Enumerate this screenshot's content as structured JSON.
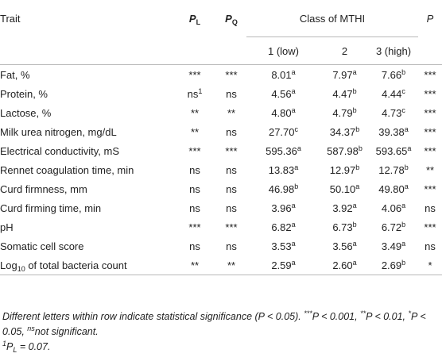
{
  "table": {
    "headers": {
      "trait": "Trait",
      "pl_letter": "P",
      "pl_sub": "L",
      "pq_letter": "P",
      "pq_sub": "Q",
      "class_group": "Class of MTHI",
      "class_1": "1 (low)",
      "class_2": "2",
      "class_3": "3 (high)",
      "p": "P"
    },
    "rows": [
      {
        "trait": "Fat, %",
        "trait_sub": "",
        "trait_tail": "",
        "pl": "***",
        "pl_sup": "",
        "pq": "***",
        "c1": "8.01",
        "c1s": "a",
        "c2": "7.97",
        "c2s": "a",
        "c3": "7.66",
        "c3s": "b",
        "p": "***"
      },
      {
        "trait": "Protein, %",
        "trait_sub": "",
        "trait_tail": "",
        "pl": "ns",
        "pl_sup": "1",
        "pq": "ns",
        "c1": "4.56",
        "c1s": "a",
        "c2": "4.47",
        "c2s": "b",
        "c3": "4.44",
        "c3s": "c",
        "p": "***"
      },
      {
        "trait": "Lactose, %",
        "trait_sub": "",
        "trait_tail": "",
        "pl": "**",
        "pl_sup": "",
        "pq": "**",
        "c1": "4.80",
        "c1s": "a",
        "c2": "4.79",
        "c2s": "b",
        "c3": "4.73",
        "c3s": "c",
        "p": "***"
      },
      {
        "trait": "Milk urea nitrogen, mg/dL",
        "trait_sub": "",
        "trait_tail": "",
        "pl": "**",
        "pl_sup": "",
        "pq": "ns",
        "c1": "27.70",
        "c1s": "c",
        "c2": "34.37",
        "c2s": "b",
        "c3": "39.38",
        "c3s": "a",
        "p": "***"
      },
      {
        "trait": "Electrical conductivity, mS",
        "trait_sub": "",
        "trait_tail": "",
        "pl": "***",
        "pl_sup": "",
        "pq": "***",
        "c1": "595.36",
        "c1s": "a",
        "c2": "587.98",
        "c2s": "b",
        "c3": "593.65",
        "c3s": "a",
        "p": "***"
      },
      {
        "trait": "Rennet coagulation time, min",
        "trait_sub": "",
        "trait_tail": "",
        "pl": "ns",
        "pl_sup": "",
        "pq": "ns",
        "c1": "13.83",
        "c1s": "a",
        "c2": "12.97",
        "c2s": "b",
        "c3": "12.78",
        "c3s": "b",
        "p": "**"
      },
      {
        "trait": "Curd firmness, mm",
        "trait_sub": "",
        "trait_tail": "",
        "pl": "ns",
        "pl_sup": "",
        "pq": "ns",
        "c1": "46.98",
        "c1s": "b",
        "c2": "50.10",
        "c2s": "a",
        "c3": "49.80",
        "c3s": "a",
        "p": "***"
      },
      {
        "trait": "Curd firming time, min",
        "trait_sub": "",
        "trait_tail": "",
        "pl": "ns",
        "pl_sup": "",
        "pq": "ns",
        "c1": "3.96",
        "c1s": "a",
        "c2": "3.92",
        "c2s": "a",
        "c3": "4.06",
        "c3s": "a",
        "p": "ns"
      },
      {
        "trait": "pH",
        "trait_sub": "",
        "trait_tail": "",
        "pl": "***",
        "pl_sup": "",
        "pq": "***",
        "c1": "6.82",
        "c1s": "a",
        "c2": "6.73",
        "c2s": "b",
        "c3": "6.72",
        "c3s": "b",
        "p": "***"
      },
      {
        "trait": "Somatic cell score",
        "trait_sub": "",
        "trait_tail": "",
        "pl": "ns",
        "pl_sup": "",
        "pq": "ns",
        "c1": "3.53",
        "c1s": "a",
        "c2": "3.56",
        "c2s": "a",
        "c3": "3.49",
        "c3s": "a",
        "p": "ns"
      },
      {
        "trait": "Log",
        "trait_sub": "10",
        "trait_tail": " of total bacteria count",
        "pl": "**",
        "pl_sup": "",
        "pq": "**",
        "c1": "2.59",
        "c1s": "a",
        "c2": "2.60",
        "c2s": "a",
        "c3": "2.69",
        "c3s": "b",
        "p": "*"
      }
    ]
  },
  "footnotes": {
    "n1_a": "Different letters within row indicate statistical significance (P < 0.05). ",
    "n1_sup1": "***",
    "n1_b": "P < 0.001, ",
    "n1_sup2": "**",
    "n1_c": "P < 0.01, ",
    "n1_sup3": "*",
    "n1_d": "P < 0.05, ",
    "n1_sup4": "ns",
    "n1_e": "not significant.",
    "n2_sup": "1",
    "n2_p": "P",
    "n2_sub": "L",
    "n2_text": " = 0.07."
  }
}
